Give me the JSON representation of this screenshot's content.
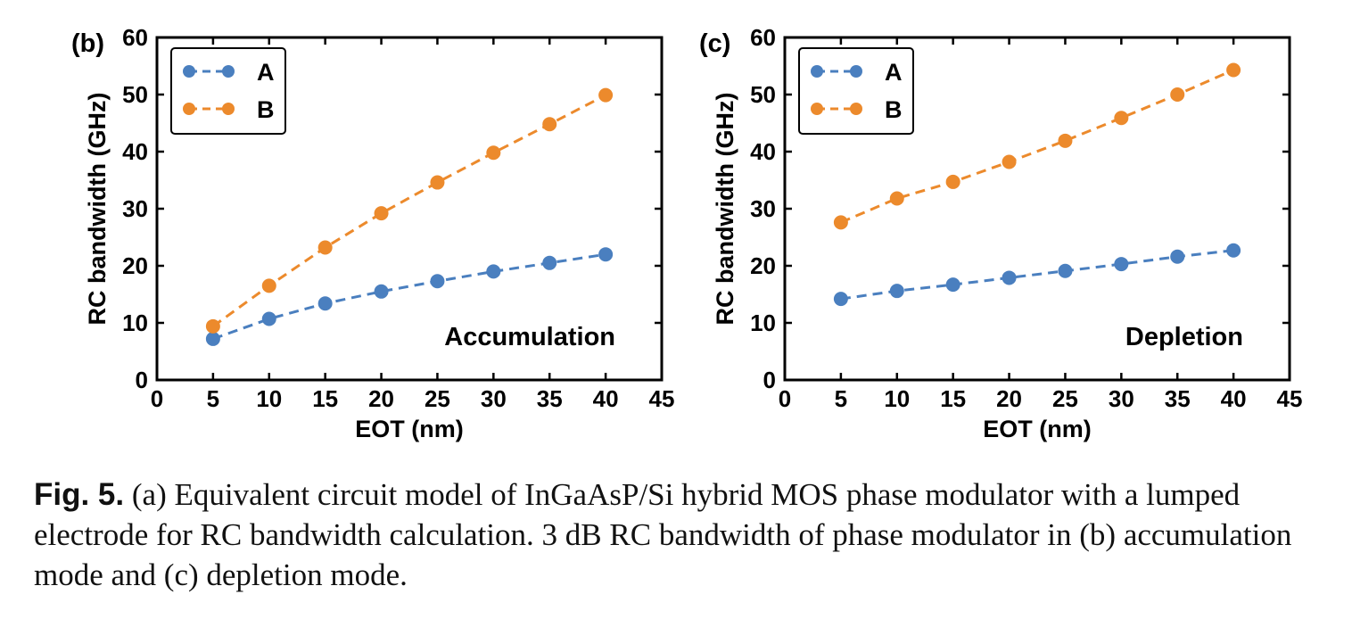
{
  "colors": {
    "A": "#4a7fbf",
    "B": "#ec8a2c",
    "axis": "#000000"
  },
  "chart_data": [
    {
      "type": "line",
      "panel_label": "(b)",
      "annotation": "Accumulation",
      "xlabel": "EOT (nm)",
      "ylabel": "RC bandwidth (GHz)",
      "xlim": [
        0,
        45
      ],
      "ylim": [
        0,
        60
      ],
      "xticks": [
        0,
        5,
        10,
        15,
        20,
        25,
        30,
        35,
        40,
        45
      ],
      "yticks": [
        0,
        10,
        20,
        30,
        40,
        50,
        60
      ],
      "x": [
        5,
        10,
        15,
        20,
        25,
        30,
        35,
        40
      ],
      "grid": false,
      "legend_position": "top-left",
      "series": [
        {
          "name": "A",
          "values": [
            7.2,
            10.7,
            13.4,
            15.5,
            17.3,
            19.0,
            20.5,
            22.0
          ]
        },
        {
          "name": "B",
          "values": [
            9.4,
            16.5,
            23.2,
            29.2,
            34.6,
            39.8,
            44.8,
            49.9
          ]
        }
      ]
    },
    {
      "type": "line",
      "panel_label": "(c)",
      "annotation": "Depletion",
      "xlabel": "EOT (nm)",
      "ylabel": "RC bandwidth (GHz)",
      "xlim": [
        0,
        45
      ],
      "ylim": [
        0,
        60
      ],
      "xticks": [
        0,
        5,
        10,
        15,
        20,
        25,
        30,
        35,
        40,
        45
      ],
      "yticks": [
        0,
        10,
        20,
        30,
        40,
        50,
        60
      ],
      "x": [
        5,
        10,
        15,
        20,
        25,
        30,
        35,
        40
      ],
      "grid": false,
      "legend_position": "top-left",
      "series": [
        {
          "name": "A",
          "values": [
            14.2,
            15.6,
            16.7,
            17.9,
            19.1,
            20.3,
            21.6,
            22.7
          ]
        },
        {
          "name": "B",
          "values": [
            27.6,
            31.8,
            34.7,
            38.2,
            41.9,
            45.9,
            50.0,
            54.3
          ]
        }
      ]
    }
  ],
  "caption": {
    "label": "Fig. 5.",
    "text": " (a) Equivalent circuit model of InGaAsP/Si hybrid MOS phase modulator with a lumped electrode for RC bandwidth calculation. 3 dB RC bandwidth of phase modulator in (b) accumulation mode and (c) depletion mode."
  }
}
